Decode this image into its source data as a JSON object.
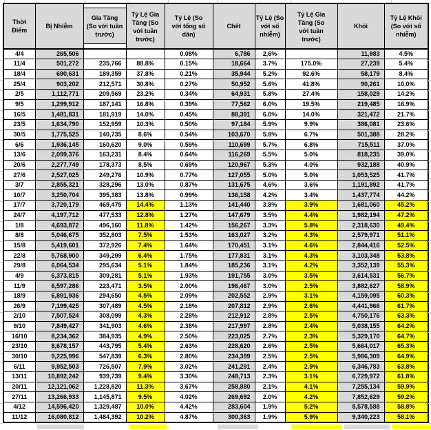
{
  "table": {
    "title_semantics": "weekly-epidemic-statistics-table",
    "colors": {
      "header_bg": "#D9D9D9",
      "gray_column_bg": "#D9D9D9",
      "highlight_bg": "#FFFF00",
      "border": "#000000",
      "gridline_stub": "#CFCFCF"
    },
    "headers": [
      {
        "id": "date",
        "lines": [
          "Thời",
          "Điểm"
        ]
      },
      {
        "id": "infected",
        "lines": [
          "Bị Nhiễm"
        ]
      },
      {
        "id": "increase",
        "lines": [
          "Gia Tăng",
          "(So với tuần",
          "trước)"
        ]
      },
      {
        "id": "increase_pct",
        "lines": [
          "Tỷ Lệ Gia",
          "Tăng (So",
          "với tuần",
          "trước)"
        ]
      },
      {
        "id": "pop_pct",
        "lines": [
          "Tỷ Lệ (So",
          "với tổng số",
          "dân)"
        ]
      },
      {
        "id": "deaths",
        "lines": [
          "Chết"
        ]
      },
      {
        "id": "death_pct",
        "lines": [
          "Tỷ Lệ (So",
          "với số",
          "nhiễm)"
        ]
      },
      {
        "id": "death_growth_pct",
        "lines": [
          "Tỷ Lệ Gia",
          "Tăng (So",
          "với tuần",
          "trước)"
        ]
      },
      {
        "id": "recovered",
        "lines": [
          "Khỏi"
        ]
      },
      {
        "id": "recovery_pct",
        "lines": [
          "Tỷ Lệ Khỏi",
          "(So với số",
          "nhiễm)"
        ]
      }
    ],
    "highlight_start_date": "17/7",
    "rows": [
      {
        "date": "4/4",
        "infected": "265,506",
        "increase": "",
        "increase_pct": "",
        "pop_pct": "0.08%",
        "deaths": "6,786",
        "death_pct": "2,6%",
        "death_growth_pct": "",
        "recovered": "11,983",
        "recovery_pct": "4.5%",
        "hl": false
      },
      {
        "date": "11/4",
        "infected": "501,272",
        "increase": "235,766",
        "increase_pct": "88.8%",
        "pop_pct": "0.15%",
        "deaths": "18,664",
        "death_pct": "3.7%",
        "death_growth_pct": "175.0%",
        "recovered": "27,239",
        "recovery_pct": "5.4%",
        "hl": false
      },
      {
        "date": "18/4",
        "infected": "690,631",
        "increase": "189,359",
        "increase_pct": "37.8%",
        "pop_pct": "0.21%",
        "deaths": "35,944",
        "death_pct": "5.2%",
        "death_growth_pct": "92.6%",
        "recovered": "58,179",
        "recovery_pct": "8.4%",
        "hl": false
      },
      {
        "date": "25/4",
        "infected": "903,202",
        "increase": "212,571",
        "increase_pct": "30.8%",
        "pop_pct": "0.27%",
        "deaths": "50,952",
        "death_pct": "5.6%",
        "death_growth_pct": "41.8%",
        "recovered": "90,261",
        "recovery_pct": "10.0%",
        "hl": false
      },
      {
        "date": "2/5",
        "infected": "1,112,771",
        "increase": "209,569",
        "increase_pct": "23.2%",
        "pop_pct": "0.34%",
        "deaths": "64,931",
        "death_pct": "5.8%",
        "death_growth_pct": "27.4%",
        "recovered": "158,029",
        "recovery_pct": "14.2%",
        "hl": false
      },
      {
        "date": "9/5",
        "infected": "1,299,912",
        "increase": "187,141",
        "increase_pct": "16.8%",
        "pop_pct": "0.39%",
        "deaths": "77,562",
        "death_pct": "6.0%",
        "death_growth_pct": "19.5%",
        "recovered": "219,485",
        "recovery_pct": "16.9%",
        "hl": false
      },
      {
        "date": "16/5",
        "infected": "1,481,831",
        "increase": "181,919",
        "increase_pct": "14.0%",
        "pop_pct": "0.45%",
        "deaths": "88,391",
        "death_pct": "6.0%",
        "death_growth_pct": "14.0%",
        "recovered": "321,472",
        "recovery_pct": "21.7%",
        "hl": false
      },
      {
        "date": "23/5",
        "infected": "1,634,790",
        "increase": "152,959",
        "increase_pct": "10.3%",
        "pop_pct": "0.50%",
        "deaths": "97,184",
        "death_pct": "5.9%",
        "death_growth_pct": "9.9%",
        "recovered": "386,081",
        "recovery_pct": "23.6%",
        "hl": false
      },
      {
        "date": "30/5",
        "infected": "1,775,525",
        "increase": "140,735",
        "increase_pct": "8.6%",
        "pop_pct": "0.54%",
        "deaths": "103,670",
        "death_pct": "5.8%",
        "death_growth_pct": "6.7%",
        "recovered": "501,388",
        "recovery_pct": "28.2%",
        "hl": false
      },
      {
        "date": "6/6",
        "infected": "1,936,145",
        "increase": "160,620",
        "increase_pct": "9.0%",
        "pop_pct": "0.59%",
        "deaths": "110,699",
        "death_pct": "5.7%",
        "death_growth_pct": "6.8%",
        "recovered": "715,511",
        "recovery_pct": "37.0%",
        "hl": false
      },
      {
        "date": "13/6",
        "infected": "2,099,376",
        "increase": "163,231",
        "increase_pct": "8.4%",
        "pop_pct": "0.64%",
        "deaths": "116,269",
        "death_pct": "5.5%",
        "death_growth_pct": "5.0%",
        "recovered": "818,235",
        "recovery_pct": "39.0%",
        "hl": false
      },
      {
        "date": "20/6",
        "infected": "2,277,749",
        "increase": "178,373",
        "increase_pct": "8.5%",
        "pop_pct": "0.69%",
        "deaths": "120,967",
        "death_pct": "5.3%",
        "death_growth_pct": "4.0%",
        "recovered": "932,188",
        "recovery_pct": "40.9%",
        "hl": false
      },
      {
        "date": "27/6",
        "infected": "2,527,025",
        "increase": "249,276",
        "increase_pct": "10.9%",
        "pop_pct": "0.77%",
        "deaths": "127,055",
        "death_pct": "5.0%",
        "death_growth_pct": "5.0%",
        "recovered": "1,053,525",
        "recovery_pct": "41.7%",
        "hl": false
      },
      {
        "date": "3/7",
        "infected": "2,855,321",
        "increase": "328,296",
        "increase_pct": "13.0%",
        "pop_pct": "0.87%",
        "deaths": "131,675",
        "death_pct": "4.6%",
        "death_growth_pct": "3.6%",
        "recovered": "1,191,892",
        "recovery_pct": "41.7%",
        "hl": false
      },
      {
        "date": "10/7",
        "infected": "3,250,704",
        "increase": "395,383",
        "increase_pct": "13.8%",
        "pop_pct": "0.99%",
        "deaths": "136,158",
        "death_pct": "4.2%",
        "death_growth_pct": "3.4%",
        "recovered": "1,437,774",
        "recovery_pct": "44.2%",
        "hl": false
      },
      {
        "date": "17/7",
        "infected": "3,720,179",
        "increase": "469,475",
        "increase_pct": "14.4%",
        "pop_pct": "1.13%",
        "deaths": "141,440",
        "death_pct": "3.8%",
        "death_growth_pct": "3.9%",
        "recovered": "1,681,060",
        "recovery_pct": "45.2%",
        "hl": true
      },
      {
        "date": "24/7",
        "infected": "4,197,712",
        "increase": "477,533",
        "increase_pct": "12.8%",
        "pop_pct": "1.27%",
        "deaths": "147,679",
        "death_pct": "3.5%",
        "death_growth_pct": "4.4%",
        "recovered": "1,982,194",
        "recovery_pct": "47.2%",
        "hl": true
      },
      {
        "date": "1/8",
        "infected": "4,693,872",
        "increase": "496,160",
        "increase_pct": "11.8%",
        "pop_pct": "1.42%",
        "deaths": "156,267",
        "death_pct": "3.3%",
        "death_growth_pct": "5.8%",
        "recovered": "2,318,630",
        "recovery_pct": "49.4%",
        "hl": true
      },
      {
        "date": "8/8",
        "infected": "5,046,675",
        "increase": "352,803",
        "increase_pct": "7.5%",
        "pop_pct": "1.53%",
        "deaths": "163,027",
        "death_pct": "3.2%",
        "death_growth_pct": "4.3%",
        "recovered": "2,579,971",
        "recovery_pct": "51.1%",
        "hl": true
      },
      {
        "date": "15/8",
        "infected": "5,419,601",
        "increase": "372,926",
        "increase_pct": "7.4%",
        "pop_pct": "1.64%",
        "deaths": "170,451",
        "death_pct": "3.1%",
        "death_growth_pct": "4.6%",
        "recovered": "2,844,416",
        "recovery_pct": "52.5%",
        "hl": true
      },
      {
        "date": "22/8",
        "infected": "5,768,900",
        "increase": "349,299",
        "increase_pct": "6.4%",
        "pop_pct": "1.75%",
        "deaths": "177,831",
        "death_pct": "3.1%",
        "death_growth_pct": "4.3%",
        "recovered": "3,103,348",
        "recovery_pct": "53.8%",
        "hl": true
      },
      {
        "date": "29/8",
        "infected": "6,064,534",
        "increase": "295,634",
        "increase_pct": "5.1%",
        "pop_pct": "1.84%",
        "deaths": "185,236",
        "death_pct": "3.1%",
        "death_growth_pct": "4.2%",
        "recovered": "3,352,139",
        "recovery_pct": "55.3%",
        "hl": true
      },
      {
        "date": "4/9",
        "infected": "6,373,815",
        "increase": "309,281",
        "increase_pct": "5.1%",
        "pop_pct": "1.93%",
        "deaths": "191,755",
        "death_pct": "3.0%",
        "death_growth_pct": "3.5%",
        "recovered": "3,614,531",
        "recovery_pct": "56.7%",
        "hl": true
      },
      {
        "date": "11/9",
        "infected": "6,597,286",
        "increase": "223,471",
        "increase_pct": "3.5%",
        "pop_pct": "2.00%",
        "deaths": "196,467",
        "death_pct": "3.0%",
        "death_growth_pct": "2.5%",
        "recovered": "3,882,627",
        "recovery_pct": "58.9%",
        "hl": true
      },
      {
        "date": "18/9",
        "infected": "6,891,936",
        "increase": "294,650",
        "increase_pct": "4.5%",
        "pop_pct": "2.09%",
        "deaths": "202,552",
        "death_pct": "2.9%",
        "death_growth_pct": "3.1%",
        "recovered": "4,159,095",
        "recovery_pct": "60.3%",
        "hl": true
      },
      {
        "date": "26/9",
        "infected": "7,199,425",
        "increase": "307,489",
        "increase_pct": "4.5%",
        "pop_pct": "2.18%",
        "deaths": "207,812",
        "death_pct": "2.9%",
        "death_growth_pct": "2.6%",
        "recovered": "4,441,966",
        "recovery_pct": "61.7%",
        "hl": true
      },
      {
        "date": "2/10",
        "infected": "7,507,524",
        "increase": "308,099",
        "increase_pct": "4.3%",
        "pop_pct": "2.28%",
        "deaths": "212,912",
        "death_pct": "2.8%",
        "death_growth_pct": "2.5%",
        "recovered": "4,750,176",
        "recovery_pct": "63.3%",
        "hl": true
      },
      {
        "date": "9/10",
        "infected": "7,849,427",
        "increase": "341,903",
        "increase_pct": "4.6%",
        "pop_pct": "2.38%",
        "deaths": "217,997",
        "death_pct": "2.8%",
        "death_growth_pct": "2.4%",
        "recovered": "5,038,155",
        "recovery_pct": "64.2%",
        "hl": true
      },
      {
        "date": "16/10",
        "infected": "8,234,362",
        "increase": "384,935",
        "increase_pct": "4.9%",
        "pop_pct": "2.50%",
        "deaths": "223,025",
        "death_pct": "2.7%",
        "death_growth_pct": "2.3%",
        "recovered": "5,329,170",
        "recovery_pct": "64.7%",
        "hl": true
      },
      {
        "date": "23/10",
        "infected": "8,678,157",
        "increase": "443,795",
        "increase_pct": "5.4%",
        "pop_pct": "2.63%",
        "deaths": "228,620",
        "death_pct": "2.6%",
        "death_growth_pct": "2.5%",
        "recovered": "5,664,017",
        "recovery_pct": "65.3%",
        "hl": true
      },
      {
        "date": "30/10",
        "infected": "9,225,996",
        "increase": "547,839",
        "increase_pct": "6.3%",
        "pop_pct": "2.80%",
        "deaths": "234,399",
        "death_pct": "2.5%",
        "death_growth_pct": "2.5%",
        "recovered": "5,986,309",
        "recovery_pct": "64.9%",
        "hl": true
      },
      {
        "date": "6/11",
        "infected": "9,952,503",
        "increase": "726,507",
        "increase_pct": "7.9%",
        "pop_pct": "3.02%",
        "deaths": "241,291",
        "death_pct": "2.4%",
        "death_growth_pct": "2.9%",
        "recovered": "6,346,783",
        "recovery_pct": "63.8%",
        "hl": true
      },
      {
        "date": "13/11",
        "infected": "10,892,242",
        "increase": "939,739",
        "increase_pct": "9.4%",
        "pop_pct": "3.30%",
        "deaths": "248,713",
        "death_pct": "2.3%",
        "death_growth_pct": "3.1%",
        "recovered": "6,729,972",
        "recovery_pct": "61.8%",
        "hl": true
      },
      {
        "date": "20/11",
        "infected": "12,121,062",
        "increase": "1,228,820",
        "increase_pct": "11.3%",
        "pop_pct": "3.67%",
        "deaths": "258,880",
        "death_pct": "2.1%",
        "death_growth_pct": "4.1%",
        "recovered": "7,255,134",
        "recovery_pct": "59.9%",
        "hl": true
      },
      {
        "date": "27/11",
        "infected": "13,266,933",
        "increase": "1,145,871",
        "increase_pct": "9.5%",
        "pop_pct": "4.02%",
        "deaths": "269,692",
        "death_pct": "2.0%",
        "death_growth_pct": "4.2%",
        "recovered": "7,852,629",
        "recovery_pct": "59.2%",
        "hl": true
      },
      {
        "date": "4/12",
        "infected": "14,596,420",
        "increase": "1,329,487",
        "increase_pct": "10.0%",
        "pop_pct": "4.42%",
        "deaths": "283,604",
        "death_pct": "1.9%",
        "death_growth_pct": "5.2%",
        "recovered": "8,578,588",
        "recovery_pct": "58.8%",
        "hl": true
      },
      {
        "date": "11/12",
        "infected": "16,080,812",
        "increase": "1,484,392",
        "increase_pct": "10.2%",
        "pop_pct": "4.87%",
        "deaths": "300,363",
        "death_pct": "1.9%",
        "death_growth_pct": "5.9%",
        "recovered": "9,340,223",
        "recovery_pct": "58.1%",
        "hl": true
      }
    ],
    "partial_next_row": {
      "visible": true,
      "filled_fields": [
        "infected",
        "increase_pct",
        "deaths",
        "death_growth_pct",
        "recovered",
        "recovery_pct"
      ]
    }
  }
}
